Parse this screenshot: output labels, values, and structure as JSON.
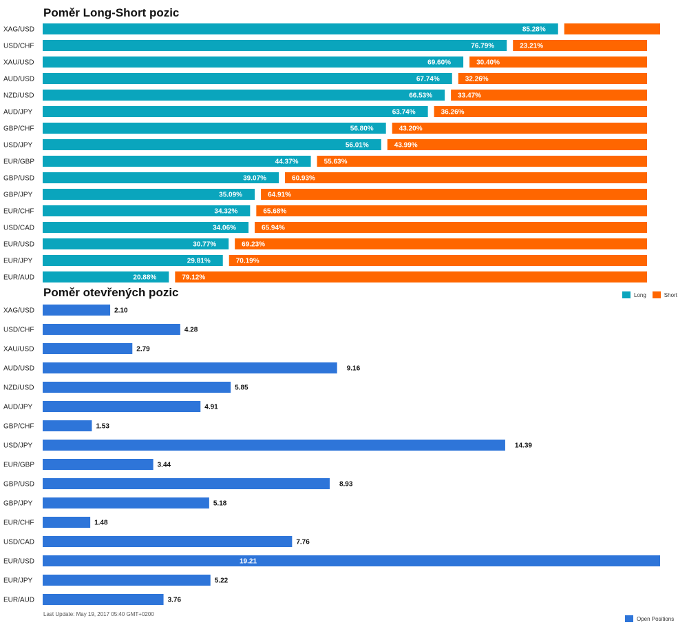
{
  "chart1": {
    "title": "Poměr Long-Short pozic",
    "legend": {
      "long": "Long",
      "short": "Short"
    }
  },
  "chart2": {
    "title": "Poměr otevřených pozic",
    "legend": "Open Positions",
    "footer": "Last Update: May 19, 2017 05:40 GMT+0200"
  },
  "colors": {
    "long": "#0aa5bd",
    "short": "#ff6600",
    "open": "#2e75d9"
  },
  "chart_data": [
    {
      "type": "bar",
      "orientation": "horizontal",
      "stacked": true,
      "title": "Poměr Long-Short pozic",
      "categories": [
        "XAG/USD",
        "USD/CHF",
        "XAU/USD",
        "AUD/USD",
        "NZD/USD",
        "AUD/JPY",
        "GBP/CHF",
        "USD/JPY",
        "EUR/GBP",
        "GBP/USD",
        "GBP/JPY",
        "EUR/CHF",
        "USD/CAD",
        "EUR/USD",
        "EUR/JPY",
        "EUR/AUD"
      ],
      "series": [
        {
          "name": "Long",
          "values": [
            85.28,
            76.79,
            69.6,
            67.74,
            66.53,
            63.74,
            56.8,
            56.01,
            44.37,
            39.07,
            35.09,
            34.32,
            34.06,
            30.77,
            29.81,
            20.88
          ],
          "labels": [
            "85.28%",
            "76.79%",
            "69.60%",
            "67.74%",
            "66.53%",
            "63.74%",
            "56.80%",
            "56.01%",
            "44.37%",
            "39.07%",
            "35.09%",
            "34.32%",
            "34.06%",
            "30.77%",
            "29.81%",
            "20.88%"
          ]
        },
        {
          "name": "Short",
          "values": [
            14.72,
            23.21,
            30.4,
            32.26,
            33.47,
            36.26,
            43.2,
            43.99,
            55.63,
            60.93,
            64.91,
            65.68,
            65.94,
            69.23,
            70.19,
            79.12
          ],
          "labels": [
            "",
            "23.21%",
            "30.40%",
            "32.26%",
            "33.47%",
            "36.26%",
            "43.20%",
            "43.99%",
            "55.63%",
            "60.93%",
            "64.91%",
            "65.68%",
            "65.94%",
            "69.23%",
            "70.19%",
            "79.12%"
          ]
        }
      ],
      "xlim": [
        0,
        100
      ],
      "legend_position": "bottom-right"
    },
    {
      "type": "bar",
      "orientation": "horizontal",
      "title": "Poměr otevřených pozic",
      "categories": [
        "XAG/USD",
        "USD/CHF",
        "XAU/USD",
        "AUD/USD",
        "NZD/USD",
        "AUD/JPY",
        "GBP/CHF",
        "USD/JPY",
        "EUR/GBP",
        "GBP/USD",
        "GBP/JPY",
        "EUR/CHF",
        "USD/CAD",
        "EUR/USD",
        "EUR/JPY",
        "EUR/AUD"
      ],
      "series": [
        {
          "name": "Open Positions",
          "values": [
            2.1,
            4.28,
            2.79,
            9.16,
            5.85,
            4.91,
            1.53,
            14.39,
            3.44,
            8.93,
            5.18,
            1.48,
            7.76,
            19.21,
            5.22,
            3.76
          ],
          "labels": [
            "2.10",
            "4.28",
            "2.79",
            "9.16",
            "5.85",
            "4.91",
            "1.53",
            "14.39",
            "3.44",
            "8.93",
            "5.18",
            "1.48",
            "7.76",
            "19.21",
            "5.22",
            "3.76"
          ]
        }
      ],
      "legend_position": "bottom-right"
    }
  ]
}
